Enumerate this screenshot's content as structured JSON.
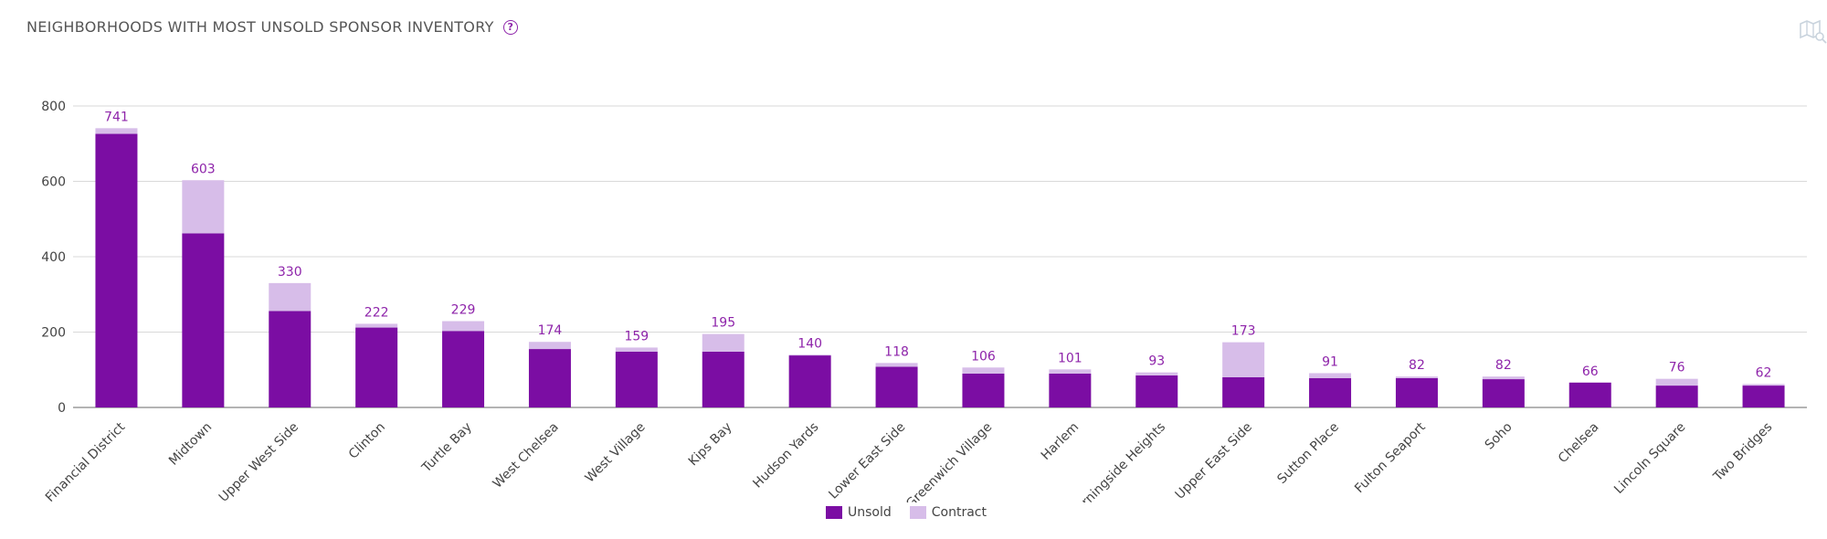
{
  "header": {
    "title": "NEIGHBORHOODS WITH MOST UNSOLD SPONSOR INVENTORY",
    "help_icon": "question-circle-icon",
    "map_icon": "map-search-icon"
  },
  "colors": {
    "unsold": "#7b0da3",
    "contract": "#d7bde9",
    "total_label": "#8e24aa",
    "grid": "#d9d9d9",
    "axis_text": "#444444"
  },
  "chart_data": {
    "type": "bar",
    "stacked": true,
    "title": "NEIGHBORHOODS WITH MOST UNSOLD SPONSOR INVENTORY",
    "xlabel": "",
    "ylabel": "",
    "ylim": [
      0,
      800
    ],
    "yticks": [
      0,
      200,
      400,
      600,
      800
    ],
    "grid": true,
    "legend_position": "bottom-center",
    "categories": [
      "Financial District",
      "Midtown",
      "Upper West Side",
      "Clinton",
      "Turtle Bay",
      "West Chelsea",
      "West Village",
      "Kips Bay",
      "Hudson Yards",
      "Lower East Side",
      "Greenwich Village",
      "Harlem",
      "Morningside Heights",
      "Upper East Side",
      "Sutton Place",
      "Fulton Seaport",
      "Soho",
      "Chelsea",
      "Lincoln Square",
      "Two Bridges"
    ],
    "series": [
      {
        "name": "Unsold",
        "values": [
          726,
          462,
          256,
          212,
          203,
          155,
          148,
          148,
          138,
          108,
          90,
          90,
          85,
          80,
          78,
          78,
          75,
          66,
          58,
          58
        ]
      },
      {
        "name": "Contract",
        "values": [
          15,
          141,
          74,
          10,
          26,
          19,
          11,
          47,
          2,
          10,
          16,
          11,
          8,
          93,
          13,
          4,
          7,
          0,
          18,
          4
        ]
      }
    ],
    "totals": [
      741,
      603,
      330,
      222,
      229,
      174,
      159,
      195,
      140,
      118,
      106,
      101,
      93,
      173,
      91,
      82,
      82,
      66,
      76,
      62
    ]
  }
}
